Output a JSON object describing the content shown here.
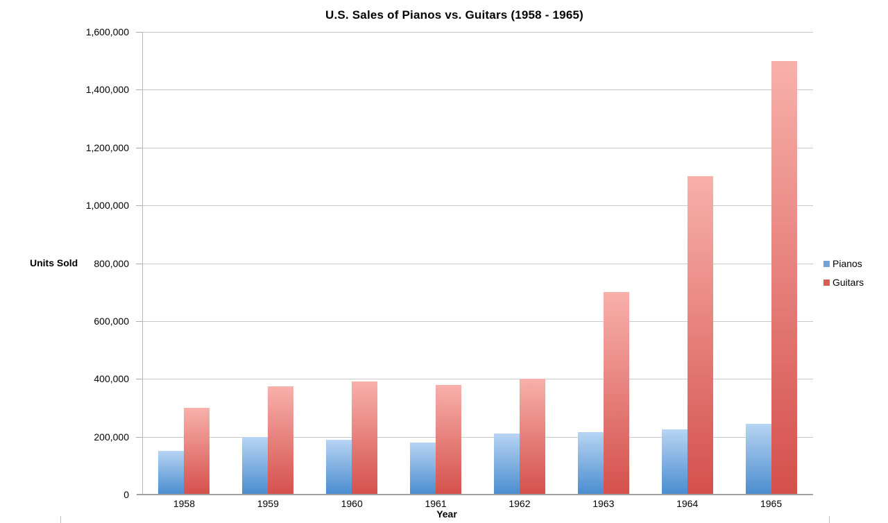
{
  "title": "U.S. Sales of Pianos vs. Guitars (1958 - 1965)",
  "chart_data": {
    "type": "bar",
    "title": "U.S. Sales of Pianos vs. Guitars (1958 - 1965)",
    "xlabel": "Year",
    "ylabel": "Units Sold",
    "categories": [
      "1958",
      "1959",
      "1960",
      "1961",
      "1962",
      "1963",
      "1964",
      "1965"
    ],
    "series": [
      {
        "name": "Pianos",
        "values": [
          150000,
          200000,
          190000,
          180000,
          210000,
          215000,
          225000,
          245000
        ],
        "gradient": [
          "#b7d4f3",
          "#4a8ccf"
        ],
        "legend_color": "#74a3d8"
      },
      {
        "name": "Guitars",
        "values": [
          300000,
          375000,
          390000,
          380000,
          400000,
          700000,
          1100000,
          1500000
        ],
        "gradient": [
          "#f8b0ab",
          "#d4504c"
        ],
        "legend_color": "#dc5b55"
      }
    ],
    "ylim": [
      0,
      1600000
    ],
    "ytick_interval": 200000,
    "ytick_labels": [
      "0",
      "200,000",
      "400,000",
      "600,000",
      "800,000",
      "1,000,000",
      "1,200,000",
      "1,400,000",
      "1,600,000"
    ],
    "grid": true,
    "legend_position": "right",
    "gridline_color": "#c9c9c9"
  }
}
